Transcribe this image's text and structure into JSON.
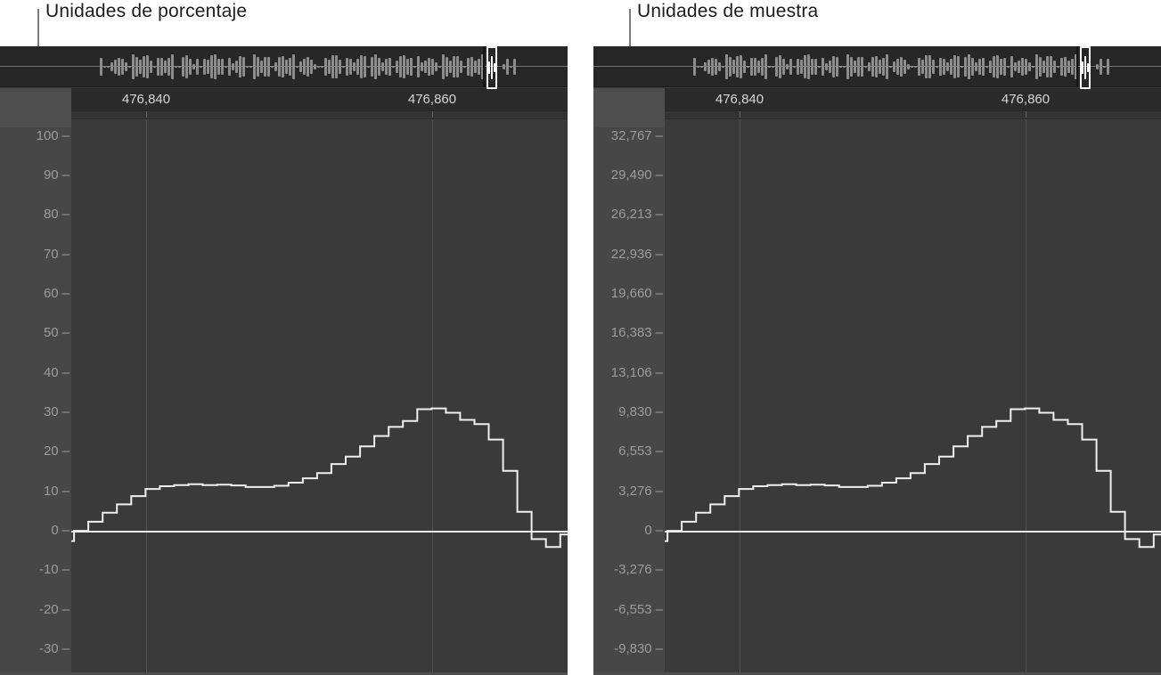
{
  "callouts": {
    "left": "Unidades de porcentaje",
    "right": "Unidades de muestra"
  },
  "panels": [
    {
      "name": "percent-units",
      "callout": "Unidades de porcentaje",
      "ruler_labels": [
        "476,840",
        "476,860"
      ],
      "y_axis_labels": [
        "100",
        "90",
        "80",
        "70",
        "60",
        "50",
        "40",
        "30",
        "20",
        "10",
        "0",
        "-10",
        "-20",
        "-30"
      ]
    },
    {
      "name": "sample-units",
      "callout": "Unidades de muestra",
      "ruler_labels": [
        "476,840",
        "476,860"
      ],
      "y_axis_labels": [
        "32,767",
        "29,490",
        "26,213",
        "22,936",
        "19,660",
        "16,383",
        "13,106",
        "9,830",
        "6,553",
        "3,276",
        "0",
        "-3,276",
        "-6,553",
        "-9,830"
      ]
    }
  ],
  "waveform": {
    "type": "step",
    "description": "Single-cycle zoomed audio waveform, one step per sample; identical shape in both panels",
    "samples_per_major_tick": 20,
    "values_percent": [
      -2.4,
      0.2,
      2.5,
      4.8,
      6.9,
      9.0,
      10.8,
      11.5,
      11.8,
      12.0,
      11.8,
      11.9,
      11.7,
      11.3,
      11.3,
      11.6,
      12.4,
      13.5,
      14.8,
      17.1,
      19.0,
      21.6,
      24.2,
      26.5,
      28.0,
      31.0,
      31.2,
      30.1,
      28.3,
      27.2,
      23.3,
      15.4,
      5.0,
      -1.9,
      -3.9,
      -0.75
    ],
    "values_sample_units": [
      -786,
      66,
      819,
      1573,
      2261,
      2949,
      3539,
      3768,
      3867,
      3932,
      3867,
      3899,
      3834,
      3703,
      3703,
      3801,
      4063,
      4424,
      4850,
      5603,
      6226,
      7078,
      7930,
      8683,
      9175,
      10158,
      10223,
      9863,
      9273,
      8913,
      7635,
      5046,
      1638,
      -623,
      -1278,
      -246
    ]
  },
  "colors": {
    "page_bg": "#ffffff",
    "strip_bg": "#272727",
    "ruler_bg": "#2b2b2b",
    "corner_bg": "#4e4e4e",
    "gutter_bg": "#474747",
    "plot_bg": "#3a3a3a",
    "gridline": "#515151",
    "axis_text": "#9c9c9c",
    "ruler_text": "#d6d6d6",
    "wave": "#efefef",
    "zero_line": "#ececec",
    "callout_text": "#1d1d1f",
    "leader_line": "#7d7d7d",
    "strip_wave": "#8d8d8d",
    "marker": "#f4f4f4"
  }
}
